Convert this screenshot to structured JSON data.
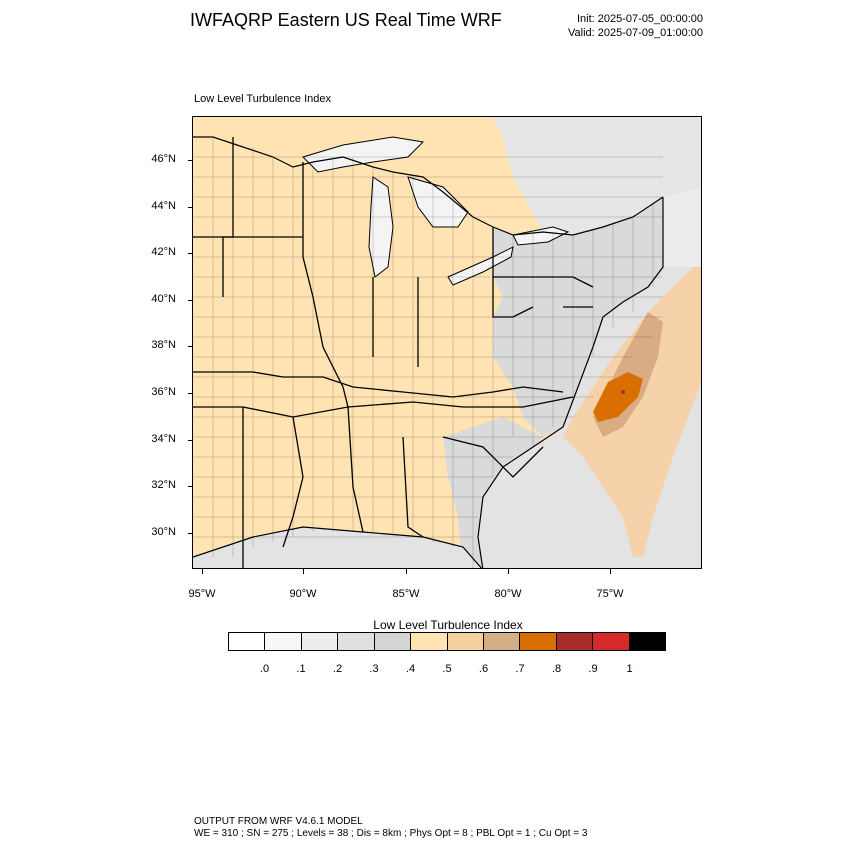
{
  "header": {
    "title": "IWFAQRP Eastern US Real Time WRF",
    "init": "Init: 2025-07-05_00:00:00",
    "valid": "Valid: 2025-07-09_01:00:00"
  },
  "panel": {
    "label": "Low Level Turbulence Index"
  },
  "map": {
    "lat_labels": [
      "46°N",
      "44°N",
      "42°N",
      "40°N",
      "38°N",
      "36°N",
      "34°N",
      "32°N",
      "30°N"
    ],
    "lon_labels": [
      "95°W",
      "90°W",
      "85°W",
      "80°W",
      "75°W"
    ],
    "colors": {
      "land_default": "#ffe3b3",
      "land_gray": "#d9d9d9",
      "water_lake": "#f4f4f4",
      "ocean_light": "#e6e6e6",
      "canada": "#ffe3b3",
      "plume_outer": "#f5c99a",
      "plume_mid": "#d9ad84",
      "plume_core": "#d96f00",
      "plume_dot": "#b02a2a",
      "county_line": "#000000"
    }
  },
  "colorbar": {
    "title": "Low Level Turbulence Index",
    "labels": [
      ".0",
      ".1",
      ".2",
      ".3",
      ".4",
      ".5",
      ".6",
      ".7",
      ".8",
      ".9",
      "1"
    ],
    "colors": [
      "#ffffff",
      "#f7f7f7",
      "#ededed",
      "#e0e0e0",
      "#d4d4d4",
      "#ffe3b3",
      "#f5cfa0",
      "#d4ae86",
      "#d96f00",
      "#a82c2c",
      "#d42a2a",
      "#000000"
    ]
  },
  "footer": {
    "line1": "OUTPUT FROM WRF V4.6.1 MODEL",
    "line2": "WE = 310 ; SN = 275 ; Levels = 38 ; Dis = 8km ; Phys Opt = 8 ; PBL Opt = 1 ; Cu Opt = 3"
  }
}
